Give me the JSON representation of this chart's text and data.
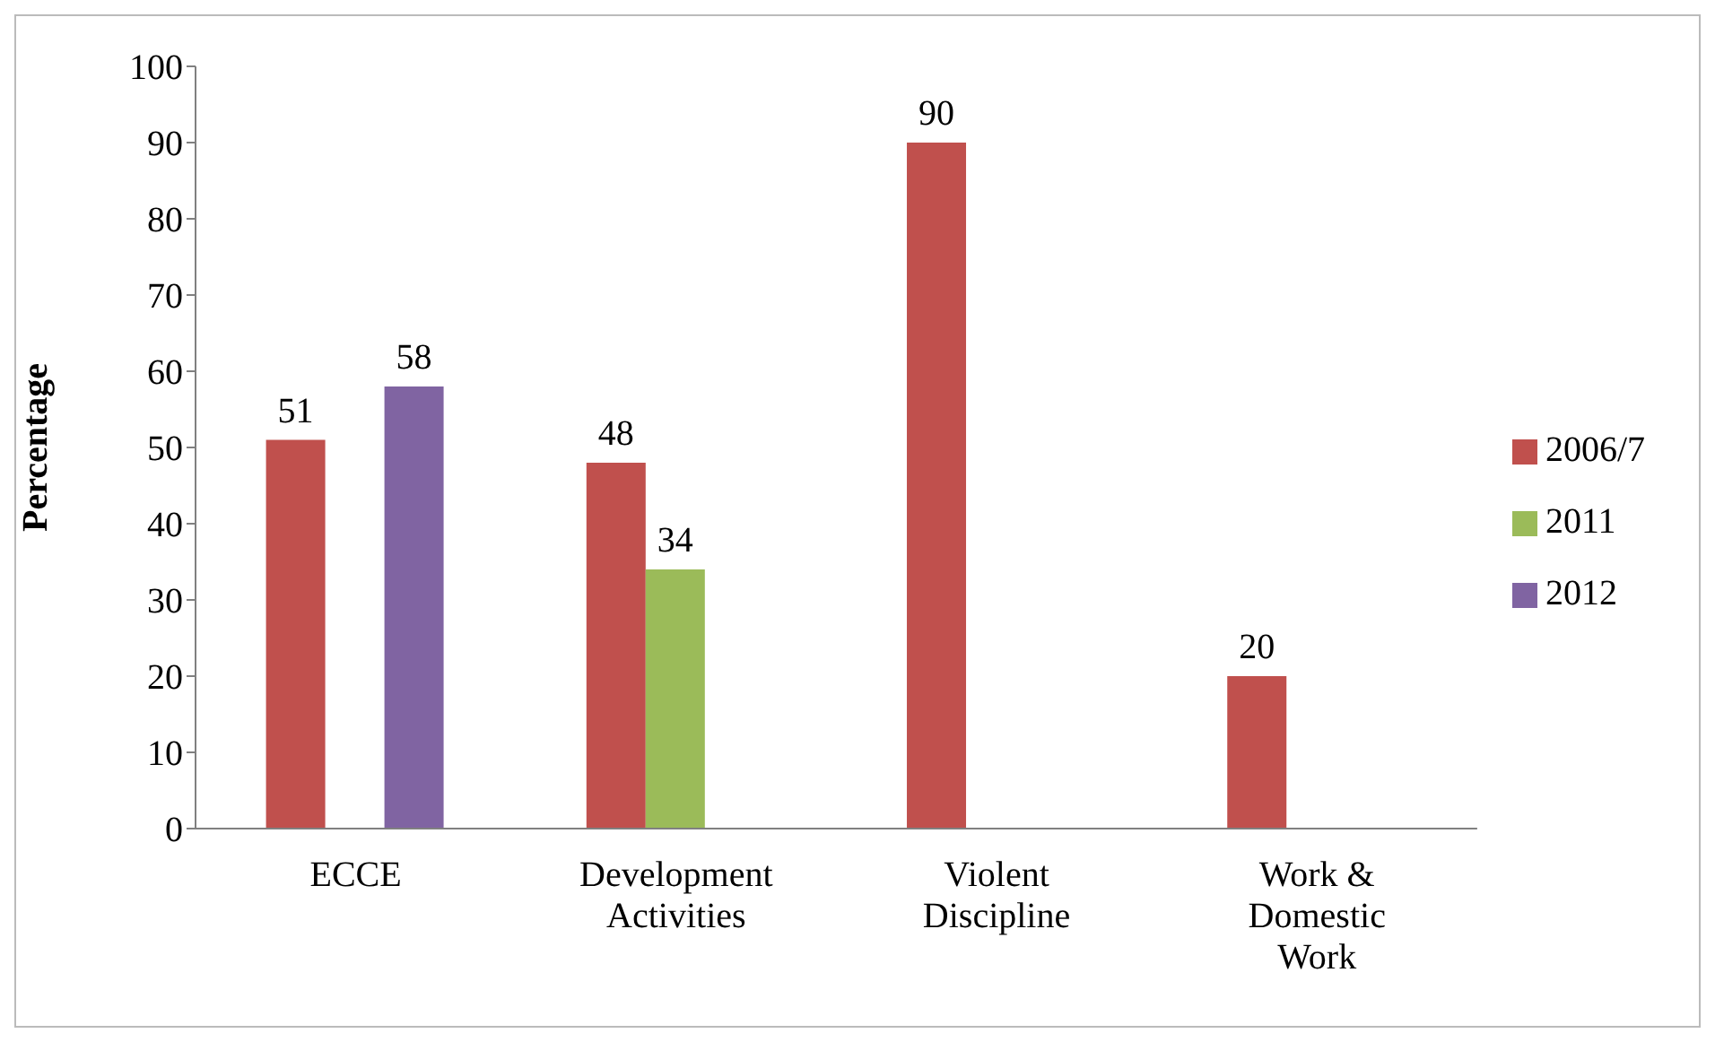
{
  "chart_data": {
    "type": "bar",
    "ylabel": "Percentage",
    "categories": [
      "ECCE",
      "Development Activities",
      "Violent Discipline",
      "Work & Domestic Work"
    ],
    "series": [
      {
        "name": "2006/7",
        "color": "#c0504d",
        "values": [
          51,
          48,
          90,
          20
        ]
      },
      {
        "name": "2011",
        "color": "#9bbb59",
        "values": [
          null,
          34,
          null,
          null
        ]
      },
      {
        "name": "2012",
        "color": "#8064a2",
        "values": [
          58,
          null,
          null,
          null
        ]
      }
    ],
    "ylim": [
      0,
      100
    ],
    "yticks": [
      0,
      10,
      20,
      30,
      40,
      50,
      60,
      70,
      80,
      90,
      100
    ],
    "data_labels": true,
    "legend": "right",
    "grid": false
  }
}
